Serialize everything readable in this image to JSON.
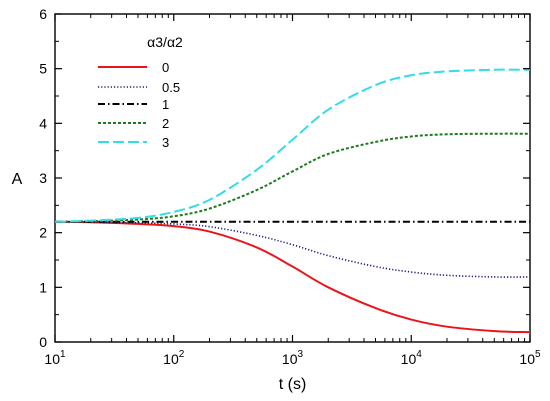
{
  "chart_data": {
    "type": "line",
    "xscale": "log",
    "xlim": [
      10,
      100000
    ],
    "ylim": [
      0,
      6
    ],
    "xlabel": "t (s)",
    "ylabel": "A",
    "grid": false,
    "legend": {
      "title": "α3/α2",
      "position": "top-left"
    },
    "xticks": [
      {
        "value": 10,
        "base": "10",
        "exp": "1"
      },
      {
        "value": 100,
        "base": "10",
        "exp": "2"
      },
      {
        "value": 1000,
        "base": "10",
        "exp": "3"
      },
      {
        "value": 10000,
        "base": "10",
        "exp": "4"
      },
      {
        "value": 100000,
        "base": "10",
        "exp": "5"
      }
    ],
    "yticks": [
      "0",
      "1",
      "2",
      "3",
      "4",
      "5",
      "6"
    ],
    "x": [
      10,
      20,
      50,
      100,
      200,
      500,
      1000,
      2000,
      5000,
      10000,
      20000,
      50000,
      100000
    ],
    "series": [
      {
        "name": "0",
        "color": "#e8161b",
        "dash": "solid",
        "values": [
          2.2,
          2.19,
          2.16,
          2.12,
          2.02,
          1.73,
          1.38,
          1.0,
          0.62,
          0.41,
          0.28,
          0.2,
          0.18
        ]
      },
      {
        "name": "0.5",
        "color": "#1a1a7a",
        "dash": "dotted",
        "values": [
          2.2,
          2.19,
          2.18,
          2.16,
          2.11,
          1.95,
          1.78,
          1.58,
          1.38,
          1.28,
          1.22,
          1.19,
          1.19
        ]
      },
      {
        "name": "1",
        "color": "#000000",
        "dash": "dashdot",
        "values": [
          2.2,
          2.2,
          2.2,
          2.2,
          2.2,
          2.2,
          2.2,
          2.2,
          2.2,
          2.2,
          2.2,
          2.2,
          2.2
        ]
      },
      {
        "name": "2",
        "color": "#1e7a1e",
        "dash": "dashed-short",
        "values": [
          2.2,
          2.21,
          2.24,
          2.3,
          2.44,
          2.78,
          3.12,
          3.44,
          3.66,
          3.76,
          3.8,
          3.81,
          3.81
        ]
      },
      {
        "name": "3",
        "color": "#33dde8",
        "dash": "dashed-long",
        "values": [
          2.2,
          2.22,
          2.27,
          2.38,
          2.6,
          3.15,
          3.7,
          4.25,
          4.7,
          4.88,
          4.95,
          4.98,
          4.98
        ]
      }
    ]
  }
}
